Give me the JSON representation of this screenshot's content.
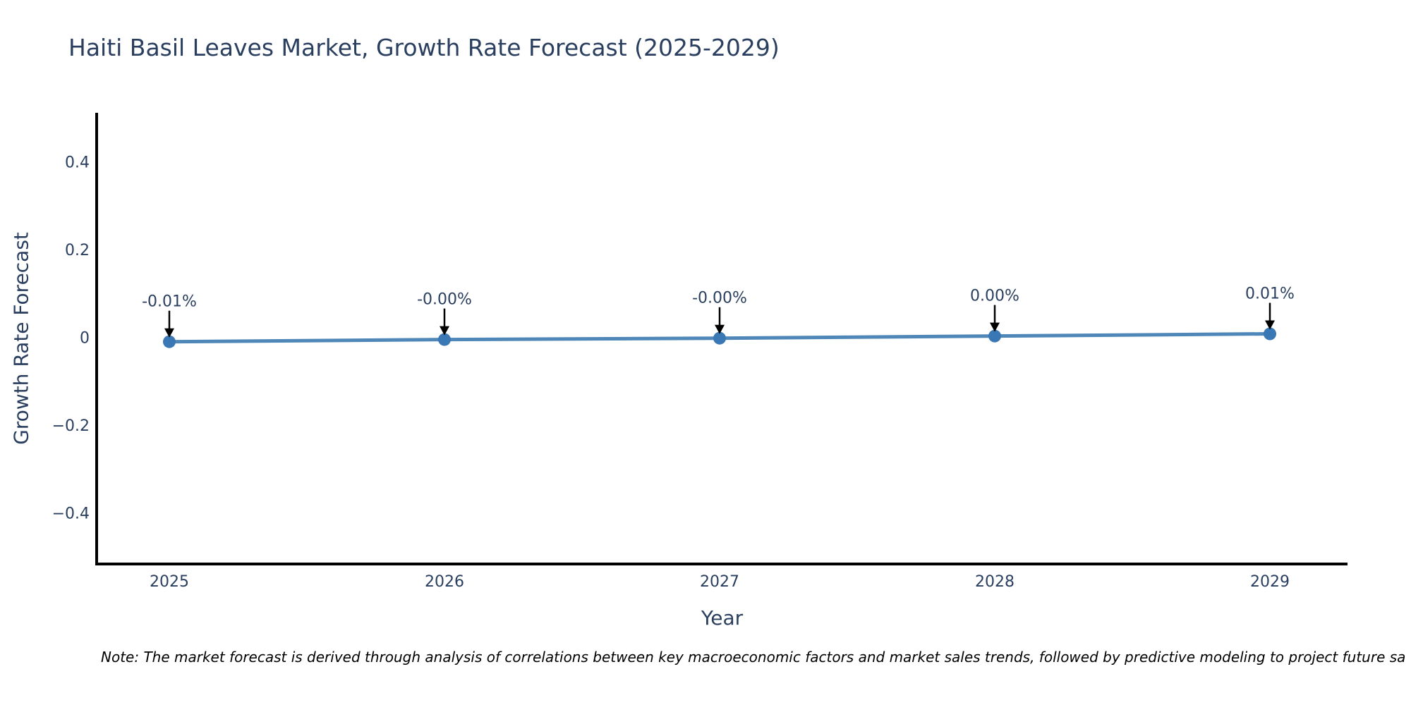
{
  "header": {
    "title": "Haiti Basil Leaves Market, Growth Rate Forecast (2025-2029)"
  },
  "footer": {
    "note": "Note: The market forecast is derived through analysis of correlations between key macroeconomic factors and market sales trends, followed by predictive modeling to project future sa"
  },
  "chart_data": {
    "type": "line",
    "title": "Haiti Basil Leaves Market, Growth Rate Forecast (2025-2029)",
    "xlabel": "Year",
    "ylabel": "Growth Rate Forecast",
    "categories": [
      "2025",
      "2026",
      "2027",
      "2028",
      "2029"
    ],
    "values": [
      -0.01,
      -0.005,
      -0.002,
      0.003,
      0.008
    ],
    "point_labels": [
      "-0.01%",
      "-0.00%",
      "-0.00%",
      "0.00%",
      "0.01%"
    ],
    "y_tick_labels": [
      "0.4",
      "0.2",
      "0",
      "−0.2",
      "−0.4"
    ],
    "y_tick_values": [
      0.4,
      0.2,
      0,
      -0.2,
      -0.4
    ],
    "ylim": [
      -0.51,
      0.51
    ],
    "grid": false,
    "legend_position": "none",
    "annotation_style": "arrow-down-to-point",
    "colors": {
      "line": "#4e87b8",
      "marker": "#3a78b5",
      "text": "#2a3f5f",
      "axis": "#000000",
      "arrow": "#000000",
      "note_text": "#000000"
    }
  }
}
